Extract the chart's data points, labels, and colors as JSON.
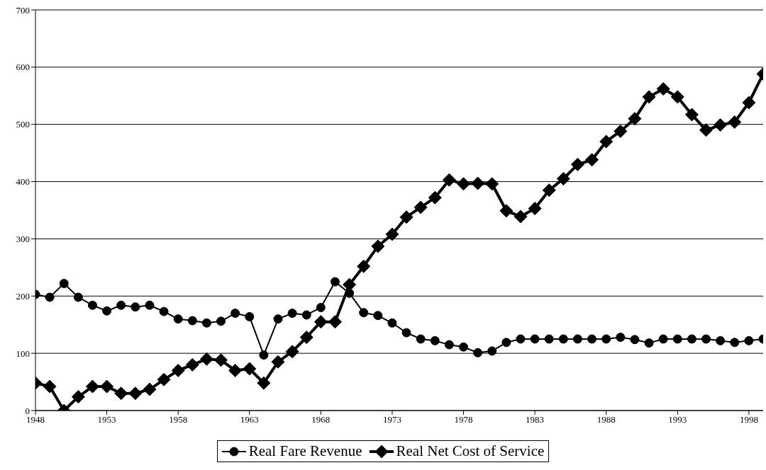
{
  "chart_data": {
    "type": "line",
    "x": [
      1948,
      1949,
      1950,
      1951,
      1952,
      1953,
      1954,
      1955,
      1956,
      1957,
      1958,
      1959,
      1960,
      1961,
      1962,
      1963,
      1964,
      1965,
      1966,
      1967,
      1968,
      1969,
      1970,
      1971,
      1972,
      1973,
      1974,
      1975,
      1976,
      1977,
      1978,
      1979,
      1980,
      1981,
      1982,
      1983,
      1984,
      1985,
      1986,
      1987,
      1988,
      1989,
      1990,
      1991,
      1992,
      1993,
      1994,
      1995,
      1996,
      1997,
      1998,
      1999
    ],
    "series": [
      {
        "name": "Real Fare Revenue",
        "color": "#000000",
        "marker": "circle",
        "values": [
          203,
          198,
          222,
          198,
          184,
          174,
          184,
          181,
          184,
          173,
          160,
          157,
          153,
          156,
          170,
          164,
          97,
          160,
          170,
          167,
          180,
          225,
          205,
          171,
          166,
          153,
          136,
          125,
          122,
          115,
          111,
          101,
          104,
          119,
          125,
          125,
          125,
          125,
          125,
          125,
          125,
          128,
          124,
          118,
          125,
          125,
          125,
          125,
          122,
          119,
          122,
          125
        ]
      },
      {
        "name": "Real Net Cost of Service",
        "color": "#000000",
        "marker": "diamond",
        "values": [
          48,
          42,
          0,
          24,
          42,
          42,
          30,
          30,
          37,
          54,
          70,
          80,
          90,
          88,
          70,
          73,
          48,
          85,
          103,
          128,
          155,
          155,
          220,
          252,
          287,
          308,
          338,
          355,
          372,
          403,
          396,
          397,
          396,
          349,
          339,
          353,
          385,
          405,
          430,
          438,
          470,
          488,
          510,
          548,
          562,
          548,
          517,
          490,
          499,
          504,
          538,
          588
        ]
      }
    ],
    "xlim": [
      1948,
      1999
    ],
    "xticks": [
      1948,
      1953,
      1958,
      1963,
      1968,
      1973,
      1978,
      1983,
      1988,
      1993,
      1998
    ],
    "ylim": [
      0,
      700
    ],
    "yticks": [
      0,
      100,
      200,
      300,
      400,
      500,
      600,
      700
    ],
    "grid": "y",
    "legend": "bottom",
    "line_style": "solid"
  }
}
